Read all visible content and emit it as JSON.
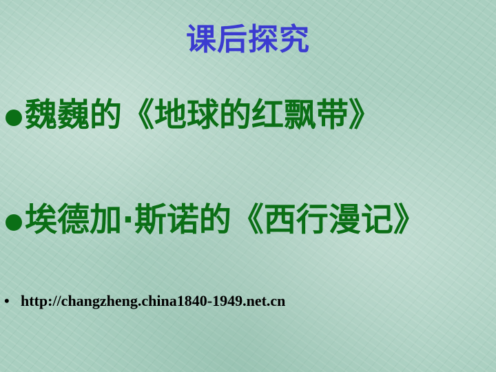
{
  "colors": {
    "title": "#3b3bd0",
    "bullet_text": "#0b6f16",
    "link_text": "#000000"
  },
  "slide": {
    "title": "课后探究",
    "bullets": [
      {
        "icon": "bullet-dot-icon",
        "text": "魏巍的《地球的红飘带》"
      },
      {
        "icon": "bullet-dot-icon",
        "text": "埃德加·斯诺的《西行漫记》"
      }
    ],
    "link": {
      "bullet": "•",
      "url": "http://changzheng.china1840-1949.net.cn"
    }
  }
}
